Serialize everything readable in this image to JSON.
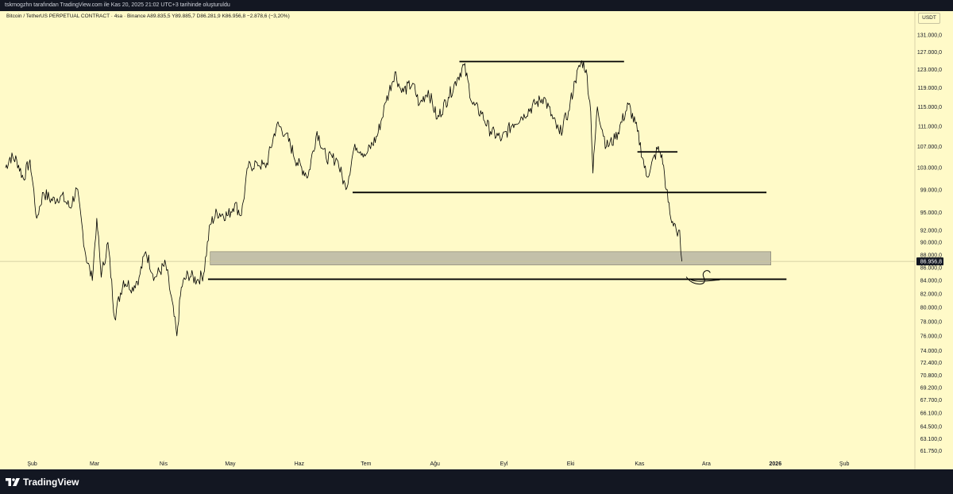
{
  "header": {
    "attribution": "tskrnogzhn tarafından TradingView.com ile Kas 20, 2025 21:02 UTC+3 tarihinde oluşturuldu"
  },
  "chart_header": {
    "symbol_line": "Bitcoin / TetherUS PERPETUAL CONTRACT · 4sa · Binance  A89.835,5  Y89.885,7  D86.281,9  K86.956,8  −2.878,6 (−3,20%)",
    "currency": "USDT"
  },
  "footer": {
    "brand": "TradingView"
  },
  "colors": {
    "background": "#fffac8",
    "candles": "#000000",
    "zone_fill": "#b8b5a3",
    "price_tag": "#131722"
  },
  "chart_data": {
    "type": "line",
    "interval": "4sa",
    "x_labels": [
      "Şub",
      "Mar",
      "Nis",
      "May",
      "Haz",
      "Tem",
      "Ağu",
      "Eyl",
      "Eki",
      "Kas",
      "Ara",
      "2026",
      "Şub"
    ],
    "y_tick_labels": [
      "131.000,0",
      "127.000,0",
      "123.000,0",
      "119.000,0",
      "115.000,0",
      "111.000,0",
      "107.000,0",
      "103.000,0",
      "99.000,0",
      "95.000,0",
      "92.000,0",
      "90.000,0",
      "88.000,0",
      "86.000,0",
      "84.000,0",
      "82.000,0",
      "80.000,0",
      "78.000,0",
      "76.000,0",
      "74.000,0",
      "72.400,0",
      "70.800,0",
      "69.200,0",
      "67.700,0",
      "66.100,0",
      "64.500,0",
      "63.100,0",
      "61.750,0"
    ],
    "y_scale": "log",
    "ylim": [
      61000,
      134000
    ],
    "last_price": 86956.8,
    "last_price_label": "86.956,8",
    "series": [
      {
        "values": [
          [
            "2025-01-20",
            103000
          ],
          [
            "2025-01-22",
            105000
          ],
          [
            "2025-01-25",
            104500
          ],
          [
            "2025-01-28",
            101000
          ],
          [
            "2025-01-31",
            104500
          ],
          [
            "2025-02-03",
            94000
          ],
          [
            "2025-02-06",
            98500
          ],
          [
            "2025-02-10",
            97000
          ],
          [
            "2025-02-14",
            98000
          ],
          [
            "2025-02-18",
            95800
          ],
          [
            "2025-02-21",
            99200
          ],
          [
            "2025-02-25",
            88000
          ],
          [
            "2025-02-28",
            84000
          ],
          [
            "2025-03-02",
            94000
          ],
          [
            "2025-03-04",
            84500
          ],
          [
            "2025-03-07",
            90000
          ],
          [
            "2025-03-10",
            78500
          ],
          [
            "2025-03-14",
            84000
          ],
          [
            "2025-03-18",
            83000
          ],
          [
            "2025-03-21",
            84500
          ],
          [
            "2025-03-24",
            88500
          ],
          [
            "2025-03-28",
            84500
          ],
          [
            "2025-04-02",
            86500
          ],
          [
            "2025-04-07",
            76000
          ],
          [
            "2025-04-09",
            83000
          ],
          [
            "2025-04-12",
            85000
          ],
          [
            "2025-04-16",
            84000
          ],
          [
            "2025-04-19",
            85000
          ],
          [
            "2025-04-22",
            93000
          ],
          [
            "2025-04-25",
            95000
          ],
          [
            "2025-04-30",
            94500
          ],
          [
            "2025-05-03",
            96500
          ],
          [
            "2025-05-06",
            94500
          ],
          [
            "2025-05-09",
            103000
          ],
          [
            "2025-05-13",
            104000
          ],
          [
            "2025-05-17",
            103000
          ],
          [
            "2025-05-22",
            111500
          ],
          [
            "2025-05-26",
            109500
          ],
          [
            "2025-05-31",
            104000
          ],
          [
            "2025-06-05",
            101500
          ],
          [
            "2025-06-09",
            110000
          ],
          [
            "2025-06-13",
            105000
          ],
          [
            "2025-06-18",
            104500
          ],
          [
            "2025-06-22",
            99000
          ],
          [
            "2025-06-26",
            107500
          ],
          [
            "2025-07-01",
            105500
          ],
          [
            "2025-07-06",
            109000
          ],
          [
            "2025-07-10",
            116000
          ],
          [
            "2025-07-14",
            122500
          ],
          [
            "2025-07-17",
            118000
          ],
          [
            "2025-07-22",
            120000
          ],
          [
            "2025-07-25",
            115500
          ],
          [
            "2025-07-29",
            118500
          ],
          [
            "2025-08-02",
            112500
          ],
          [
            "2025-08-07",
            117000
          ],
          [
            "2025-08-11",
            121000
          ],
          [
            "2025-08-14",
            124000
          ],
          [
            "2025-08-18",
            115500
          ],
          [
            "2025-08-22",
            113500
          ],
          [
            "2025-08-26",
            110000
          ],
          [
            "2025-08-31",
            108500
          ],
          [
            "2025-09-05",
            111500
          ],
          [
            "2025-09-10",
            113500
          ],
          [
            "2025-09-15",
            115500
          ],
          [
            "2025-09-19",
            117000
          ],
          [
            "2025-09-23",
            112500
          ],
          [
            "2025-09-26",
            109500
          ],
          [
            "2025-09-30",
            114000
          ],
          [
            "2025-10-03",
            120500
          ],
          [
            "2025-10-06",
            125000
          ],
          [
            "2025-10-08",
            123000
          ],
          [
            "2025-10-10",
            114000
          ],
          [
            "2025-10-11",
            102000
          ],
          [
            "2025-10-13",
            115000
          ],
          [
            "2025-10-17",
            107000
          ],
          [
            "2025-10-21",
            108500
          ],
          [
            "2025-10-27",
            115500
          ],
          [
            "2025-10-31",
            110000
          ],
          [
            "2025-11-04",
            101500
          ],
          [
            "2025-11-06",
            103000
          ],
          [
            "2025-11-09",
            106500
          ],
          [
            "2025-11-11",
            105500
          ],
          [
            "2025-11-13",
            99000
          ],
          [
            "2025-11-15",
            94000
          ],
          [
            "2025-11-17",
            93000
          ],
          [
            "2025-11-18",
            91000
          ],
          [
            "2025-11-19",
            92000
          ],
          [
            "2025-11-20",
            86956.8
          ]
        ]
      }
    ],
    "annotations": [
      {
        "kind": "hline",
        "price": 124800,
        "from": "2025-08-12",
        "to": "2025-10-25"
      },
      {
        "kind": "hline",
        "price": 106000,
        "from": "2025-10-31",
        "to": "2025-11-18"
      },
      {
        "kind": "hline",
        "price": 98500,
        "from": "2025-06-25",
        "to": "2025-12-28"
      },
      {
        "kind": "zone",
        "price_top": 88500,
        "price_bottom": 86400,
        "from": "2025-04-22",
        "to": "2025-12-30"
      },
      {
        "kind": "hline",
        "price": 84200,
        "from": "2025-04-21",
        "to": "2026-01-06"
      }
    ]
  }
}
